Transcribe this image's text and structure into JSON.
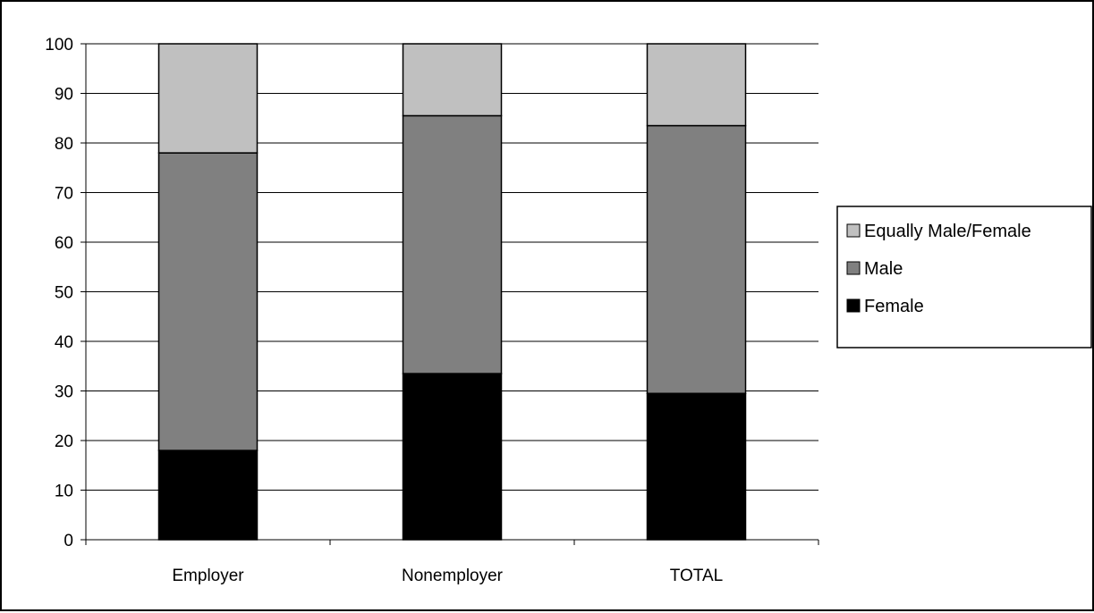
{
  "chart_data": {
    "type": "bar",
    "stacked": true,
    "title": "",
    "xlabel": "",
    "ylabel": "",
    "categories": [
      "Employer",
      "Nonemployer",
      "TOTAL"
    ],
    "ylim": [
      0,
      100
    ],
    "yticks": [
      0,
      10,
      20,
      30,
      40,
      50,
      60,
      70,
      80,
      90,
      100
    ],
    "grid": true,
    "legend": {
      "position": "right",
      "order": [
        "Equally Male/Female",
        "Male",
        "Female"
      ]
    },
    "series": [
      {
        "name": "Female",
        "values": [
          18,
          33.5,
          29.5
        ],
        "color": "#000000"
      },
      {
        "name": "Male",
        "values": [
          60,
          52,
          54
        ],
        "color": "#808080"
      },
      {
        "name": "Equally Male/Female",
        "values": [
          22,
          14.5,
          16.5
        ],
        "color": "#c0c0c0"
      }
    ]
  }
}
